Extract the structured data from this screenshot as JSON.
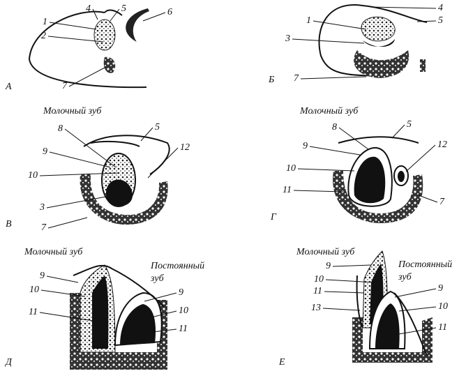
{
  "panels": [
    {
      "letter": "А",
      "labels": [
        "1",
        "2",
        "4",
        "5",
        "6",
        "7"
      ]
    },
    {
      "letter": "Б",
      "labels": [
        "1",
        "3",
        "4",
        "5",
        "7"
      ]
    },
    {
      "letter": "В",
      "title": "Молочный зуб",
      "labels": [
        "3",
        "5",
        "7",
        "8",
        "9",
        "10",
        "12"
      ]
    },
    {
      "letter": "Г",
      "title": "Молочный зуб",
      "labels": [
        "5",
        "7",
        "8",
        "9",
        "10",
        "11",
        "12"
      ]
    },
    {
      "letter": "Д",
      "title": "Молочный зуб",
      "title2": [
        "Постоянный",
        "зуб"
      ],
      "labels": [
        "9",
        "10",
        "11",
        "9",
        "10",
        "11"
      ]
    },
    {
      "letter": "Е",
      "title": "Молочный зуб",
      "title2": [
        "Постоянный",
        "зуб"
      ],
      "labels": [
        "9",
        "10",
        "11",
        "13",
        "9",
        "10",
        "11"
      ]
    }
  ]
}
